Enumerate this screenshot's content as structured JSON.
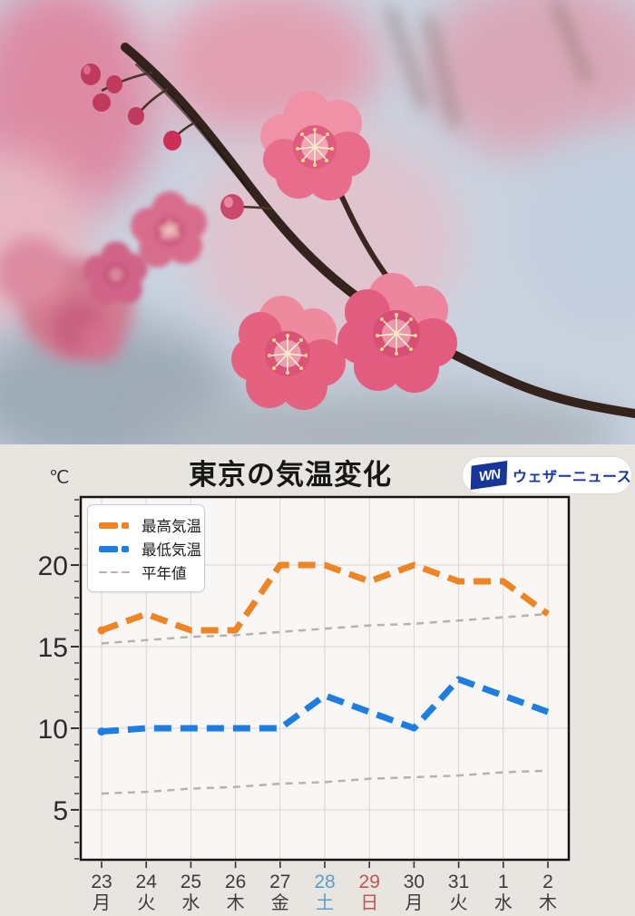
{
  "photo": {
    "subject": "plum-blossoms"
  },
  "header": {
    "unit_label": "℃",
    "title": "東京の気温変化",
    "logo": {
      "mark": "WN",
      "text": "ウェザーニュース",
      "color": "#16369c"
    }
  },
  "chart_data": {
    "type": "line",
    "title": "東京の気温変化",
    "y_unit": "℃",
    "categories_date": [
      "23",
      "24",
      "25",
      "26",
      "27",
      "28",
      "29",
      "30",
      "31",
      "1",
      "2"
    ],
    "categories_weekday": [
      "月",
      "火",
      "水",
      "木",
      "金",
      "土",
      "日",
      "月",
      "火",
      "水",
      "木"
    ],
    "x_label_colors": [
      "#3c3c3c",
      "#3c3c3c",
      "#3c3c3c",
      "#3c3c3c",
      "#3c3c3c",
      "#5b9ec9",
      "#c4534e",
      "#3c3c3c",
      "#3c3c3c",
      "#3c3c3c",
      "#3c3c3c"
    ],
    "series": [
      {
        "name": "最高気温",
        "color": "#ee8424",
        "dash": "thick",
        "start_dot": true,
        "values": [
          16,
          17,
          16,
          16,
          20,
          20,
          19,
          20,
          19,
          19,
          17
        ]
      },
      {
        "name": "最低気温",
        "color": "#1e7de0",
        "dash": "thick",
        "start_dot": true,
        "values": [
          9.8,
          10,
          10,
          10,
          10,
          12,
          11,
          10,
          13,
          12,
          11
        ]
      },
      {
        "name": "平年値(最高)",
        "color": "#b5b2af",
        "dash": "thin",
        "values": [
          15.2,
          15.4,
          15.6,
          15.7,
          15.9,
          16.1,
          16.3,
          16.4,
          16.6,
          16.8,
          17.0
        ]
      },
      {
        "name": "平年値(最低)",
        "color": "#b5b2af",
        "dash": "thin",
        "values": [
          6.0,
          6.1,
          6.3,
          6.4,
          6.6,
          6.7,
          6.9,
          7.0,
          7.1,
          7.3,
          7.4
        ]
      }
    ],
    "legend": [
      {
        "label": "最高気温",
        "color": "#ee8424",
        "style": "thick"
      },
      {
        "label": "最低気温",
        "color": "#1e7de0",
        "style": "thick"
      },
      {
        "label": "平年値",
        "color": "#b5b2af",
        "style": "thin"
      }
    ],
    "yticks": [
      5,
      10,
      15,
      20
    ],
    "ylim": [
      1.94,
      24.17
    ],
    "grid": true,
    "legend_position": "top-left"
  }
}
